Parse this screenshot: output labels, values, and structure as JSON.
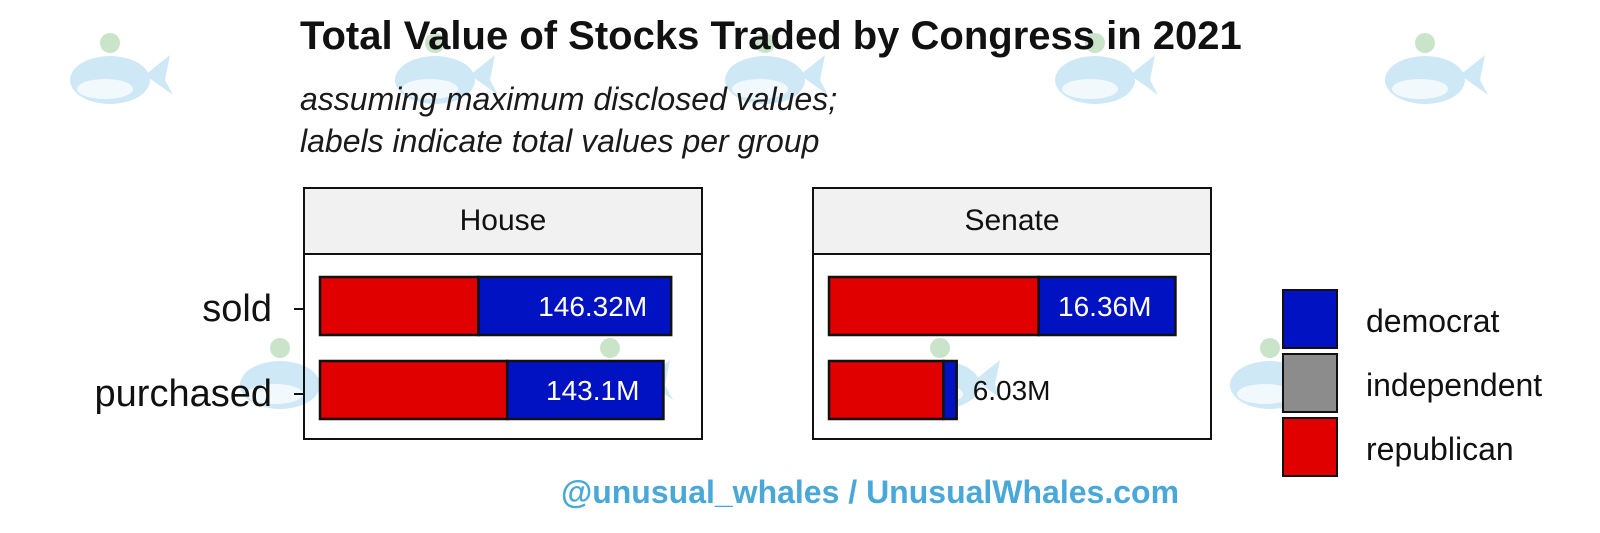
{
  "chart_data": {
    "type": "bar",
    "orientation": "horizontal",
    "stacked": true,
    "title": "Total Value of Stocks Traded by Congress in 2021",
    "subtitle_lines": [
      "assuming maximum disclosed values;",
      "labels indicate total values per group"
    ],
    "categories": [
      "sold",
      "purchased"
    ],
    "facets": [
      {
        "name": "House",
        "xlim": [
          0,
          150
        ],
        "series": [
          {
            "name": "republican",
            "values": [
              66,
              78
            ]
          },
          {
            "name": "independent",
            "values": [
              0,
              0
            ]
          },
          {
            "name": "democrat",
            "values": [
              80.32,
              65.1
            ]
          }
        ],
        "total_labels": [
          "146.32M",
          "143.1M"
        ]
      },
      {
        "name": "Senate",
        "xlim": [
          0,
          17
        ],
        "series": [
          {
            "name": "republican",
            "values": [
              9.9,
              5.4
            ]
          },
          {
            "name": "independent",
            "values": [
              0,
              0
            ]
          },
          {
            "name": "democrat",
            "values": [
              6.46,
              0.63
            ]
          }
        ],
        "total_labels": [
          "16.36M",
          "6.03M"
        ]
      }
    ],
    "legend": {
      "position": "right",
      "entries": [
        {
          "name": "democrat",
          "color": "#0012c2"
        },
        {
          "name": "independent",
          "color": "#8c8c8c"
        },
        {
          "name": "republican",
          "color": "#e00000"
        }
      ]
    },
    "grid": false,
    "label_color_inside": "#ffffff",
    "label_color_outside": "#111111"
  },
  "caption": "@unusual_whales / UnusualWhales.com"
}
